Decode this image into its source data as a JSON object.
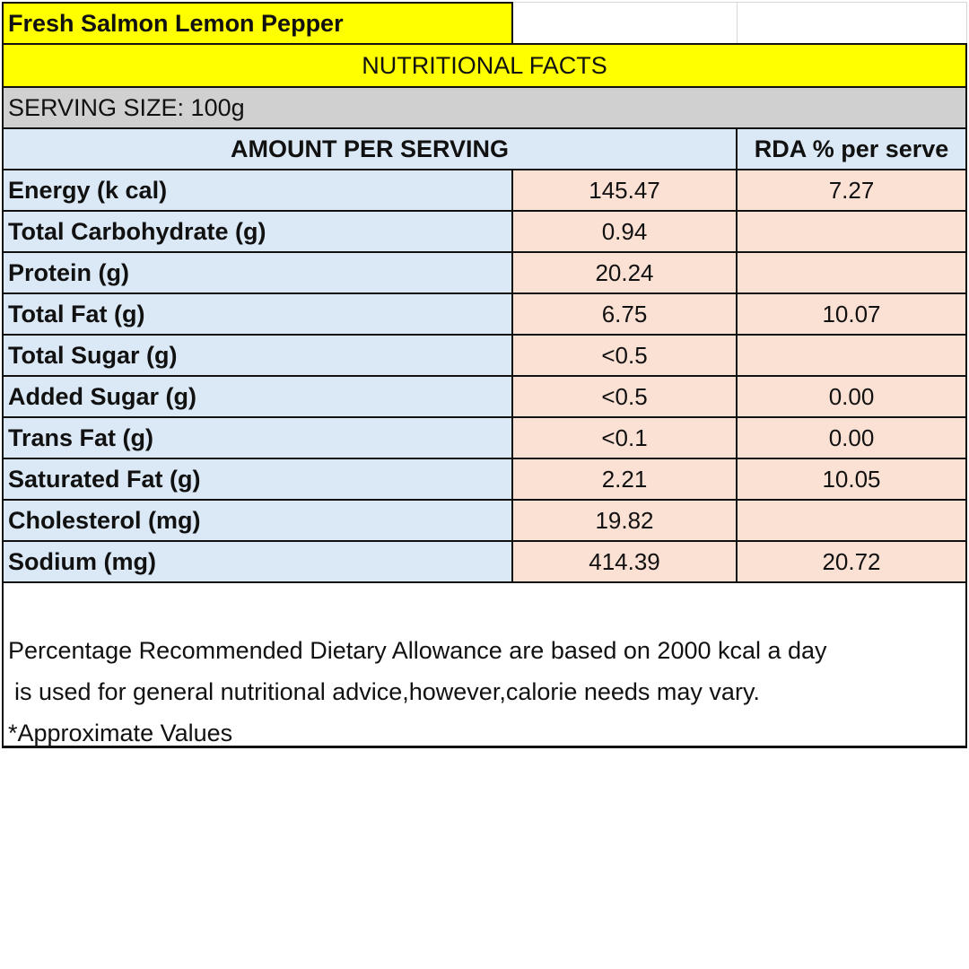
{
  "product_title": "Fresh Salmon Lemon Pepper",
  "section_title": "NUTRITIONAL FACTS",
  "serving_size": "SERVING SIZE: 100g",
  "table": {
    "header": {
      "amount": "AMOUNT PER SERVING",
      "rda": "RDA % per serve"
    },
    "rows": [
      {
        "name": "Energy (k cal)",
        "amount": "145.47",
        "rda": "7.27"
      },
      {
        "name": "Total Carbohydrate (g)",
        "amount": "0.94",
        "rda": ""
      },
      {
        "name": "Protein (g)",
        "amount": "20.24",
        "rda": ""
      },
      {
        "name": "Total Fat (g)",
        "amount": "6.75",
        "rda": "10.07"
      },
      {
        "name": "Total Sugar (g)",
        "amount": "<0.5",
        "rda": ""
      },
      {
        "name": "Added Sugar (g)",
        "amount": "<0.5",
        "rda": "0.00"
      },
      {
        "name": "Trans Fat (g)",
        "amount": "<0.1",
        "rda": "0.00"
      },
      {
        "name": "Saturated Fat (g)",
        "amount": "2.21",
        "rda": "10.05"
      },
      {
        "name": "Cholesterol (mg)",
        "amount": "19.82",
        "rda": ""
      },
      {
        "name": "Sodium (mg)",
        "amount": "414.39",
        "rda": "20.72"
      }
    ]
  },
  "footnote": {
    "line1": "Percentage Recommended Dietary Allowance are based on 2000 kcal a day",
    "line2": "is used for general nutritional advice,however,calorie needs may vary.",
    "line3": "*Approximate Values"
  },
  "colors": {
    "title_yellow": "#ffff00",
    "serving_grey": "#d0d0d0",
    "label_blue": "#dbe8f5",
    "value_peach": "#fbe0d4"
  }
}
